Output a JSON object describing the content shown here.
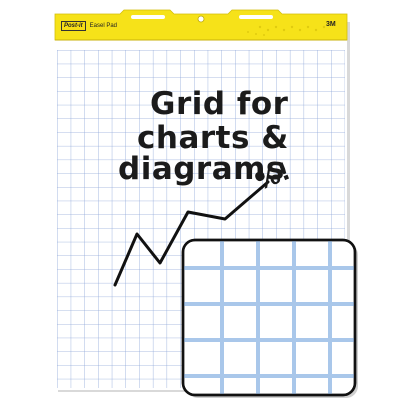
{
  "pad": {
    "brand_logo": "Post-it",
    "product_name": "Easel Pad",
    "maker_mark": "3M",
    "header_color": "#f6e219",
    "grid_color": "#8fa7d9",
    "zoom_grid_color": "#a9c7ea"
  },
  "headline": {
    "line1": "Grid for",
    "line2": "charts &",
    "line3": "diagrams",
    "percent_note": "%!"
  },
  "drawing": {
    "arrow": "zigzag-trend-line"
  }
}
